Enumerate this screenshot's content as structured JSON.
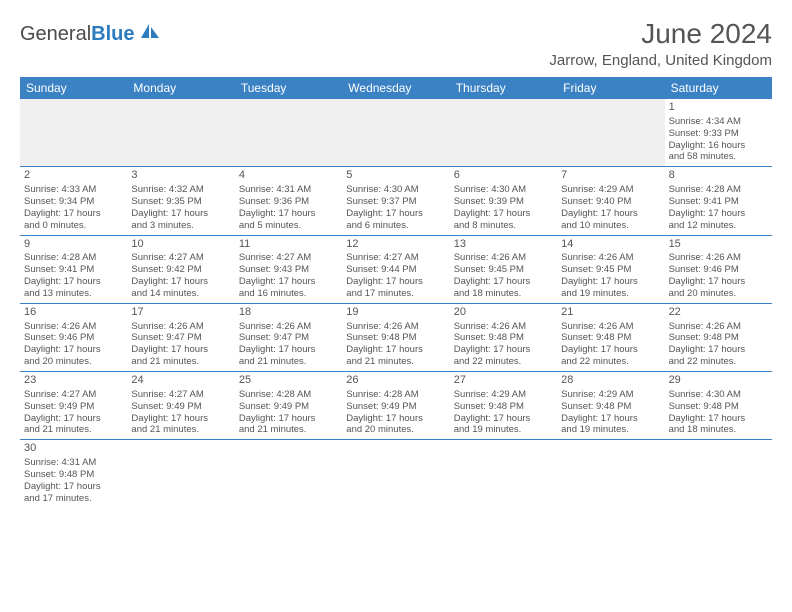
{
  "logo": {
    "text1": "General",
    "text2": "Blue"
  },
  "title": "June 2024",
  "location": "Jarrow, England, United Kingdom",
  "header_bg": "#3b82c4",
  "header_fg": "#ffffff",
  "border_color": "#3b82c4",
  "text_color": "#555555",
  "dayNames": [
    "Sunday",
    "Monday",
    "Tuesday",
    "Wednesday",
    "Thursday",
    "Friday",
    "Saturday"
  ],
  "weeks": [
    [
      null,
      null,
      null,
      null,
      null,
      null,
      {
        "n": "1",
        "sr": "Sunrise: 4:34 AM",
        "ss": "Sunset: 9:33 PM",
        "d1": "Daylight: 16 hours",
        "d2": "and 58 minutes."
      }
    ],
    [
      {
        "n": "2",
        "sr": "Sunrise: 4:33 AM",
        "ss": "Sunset: 9:34 PM",
        "d1": "Daylight: 17 hours",
        "d2": "and 0 minutes."
      },
      {
        "n": "3",
        "sr": "Sunrise: 4:32 AM",
        "ss": "Sunset: 9:35 PM",
        "d1": "Daylight: 17 hours",
        "d2": "and 3 minutes."
      },
      {
        "n": "4",
        "sr": "Sunrise: 4:31 AM",
        "ss": "Sunset: 9:36 PM",
        "d1": "Daylight: 17 hours",
        "d2": "and 5 minutes."
      },
      {
        "n": "5",
        "sr": "Sunrise: 4:30 AM",
        "ss": "Sunset: 9:37 PM",
        "d1": "Daylight: 17 hours",
        "d2": "and 6 minutes."
      },
      {
        "n": "6",
        "sr": "Sunrise: 4:30 AM",
        "ss": "Sunset: 9:39 PM",
        "d1": "Daylight: 17 hours",
        "d2": "and 8 minutes."
      },
      {
        "n": "7",
        "sr": "Sunrise: 4:29 AM",
        "ss": "Sunset: 9:40 PM",
        "d1": "Daylight: 17 hours",
        "d2": "and 10 minutes."
      },
      {
        "n": "8",
        "sr": "Sunrise: 4:28 AM",
        "ss": "Sunset: 9:41 PM",
        "d1": "Daylight: 17 hours",
        "d2": "and 12 minutes."
      }
    ],
    [
      {
        "n": "9",
        "sr": "Sunrise: 4:28 AM",
        "ss": "Sunset: 9:41 PM",
        "d1": "Daylight: 17 hours",
        "d2": "and 13 minutes."
      },
      {
        "n": "10",
        "sr": "Sunrise: 4:27 AM",
        "ss": "Sunset: 9:42 PM",
        "d1": "Daylight: 17 hours",
        "d2": "and 14 minutes."
      },
      {
        "n": "11",
        "sr": "Sunrise: 4:27 AM",
        "ss": "Sunset: 9:43 PM",
        "d1": "Daylight: 17 hours",
        "d2": "and 16 minutes."
      },
      {
        "n": "12",
        "sr": "Sunrise: 4:27 AM",
        "ss": "Sunset: 9:44 PM",
        "d1": "Daylight: 17 hours",
        "d2": "and 17 minutes."
      },
      {
        "n": "13",
        "sr": "Sunrise: 4:26 AM",
        "ss": "Sunset: 9:45 PM",
        "d1": "Daylight: 17 hours",
        "d2": "and 18 minutes."
      },
      {
        "n": "14",
        "sr": "Sunrise: 4:26 AM",
        "ss": "Sunset: 9:45 PM",
        "d1": "Daylight: 17 hours",
        "d2": "and 19 minutes."
      },
      {
        "n": "15",
        "sr": "Sunrise: 4:26 AM",
        "ss": "Sunset: 9:46 PM",
        "d1": "Daylight: 17 hours",
        "d2": "and 20 minutes."
      }
    ],
    [
      {
        "n": "16",
        "sr": "Sunrise: 4:26 AM",
        "ss": "Sunset: 9:46 PM",
        "d1": "Daylight: 17 hours",
        "d2": "and 20 minutes."
      },
      {
        "n": "17",
        "sr": "Sunrise: 4:26 AM",
        "ss": "Sunset: 9:47 PM",
        "d1": "Daylight: 17 hours",
        "d2": "and 21 minutes."
      },
      {
        "n": "18",
        "sr": "Sunrise: 4:26 AM",
        "ss": "Sunset: 9:47 PM",
        "d1": "Daylight: 17 hours",
        "d2": "and 21 minutes."
      },
      {
        "n": "19",
        "sr": "Sunrise: 4:26 AM",
        "ss": "Sunset: 9:48 PM",
        "d1": "Daylight: 17 hours",
        "d2": "and 21 minutes."
      },
      {
        "n": "20",
        "sr": "Sunrise: 4:26 AM",
        "ss": "Sunset: 9:48 PM",
        "d1": "Daylight: 17 hours",
        "d2": "and 22 minutes."
      },
      {
        "n": "21",
        "sr": "Sunrise: 4:26 AM",
        "ss": "Sunset: 9:48 PM",
        "d1": "Daylight: 17 hours",
        "d2": "and 22 minutes."
      },
      {
        "n": "22",
        "sr": "Sunrise: 4:26 AM",
        "ss": "Sunset: 9:48 PM",
        "d1": "Daylight: 17 hours",
        "d2": "and 22 minutes."
      }
    ],
    [
      {
        "n": "23",
        "sr": "Sunrise: 4:27 AM",
        "ss": "Sunset: 9:49 PM",
        "d1": "Daylight: 17 hours",
        "d2": "and 21 minutes."
      },
      {
        "n": "24",
        "sr": "Sunrise: 4:27 AM",
        "ss": "Sunset: 9:49 PM",
        "d1": "Daylight: 17 hours",
        "d2": "and 21 minutes."
      },
      {
        "n": "25",
        "sr": "Sunrise: 4:28 AM",
        "ss": "Sunset: 9:49 PM",
        "d1": "Daylight: 17 hours",
        "d2": "and 21 minutes."
      },
      {
        "n": "26",
        "sr": "Sunrise: 4:28 AM",
        "ss": "Sunset: 9:49 PM",
        "d1": "Daylight: 17 hours",
        "d2": "and 20 minutes."
      },
      {
        "n": "27",
        "sr": "Sunrise: 4:29 AM",
        "ss": "Sunset: 9:48 PM",
        "d1": "Daylight: 17 hours",
        "d2": "and 19 minutes."
      },
      {
        "n": "28",
        "sr": "Sunrise: 4:29 AM",
        "ss": "Sunset: 9:48 PM",
        "d1": "Daylight: 17 hours",
        "d2": "and 19 minutes."
      },
      {
        "n": "29",
        "sr": "Sunrise: 4:30 AM",
        "ss": "Sunset: 9:48 PM",
        "d1": "Daylight: 17 hours",
        "d2": "and 18 minutes."
      }
    ],
    [
      {
        "n": "30",
        "sr": "Sunrise: 4:31 AM",
        "ss": "Sunset: 9:48 PM",
        "d1": "Daylight: 17 hours",
        "d2": "and 17 minutes."
      },
      null,
      null,
      null,
      null,
      null,
      null
    ]
  ]
}
